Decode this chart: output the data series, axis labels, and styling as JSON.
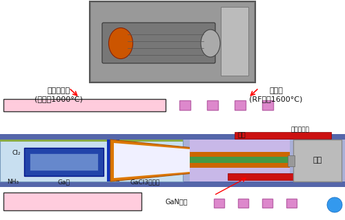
{
  "bg_color": "#ffffff",
  "label_raw_material": "原料发生部\n(电炉～1000°C)",
  "label_growth": "生长部\n(RF炉～1600°C)",
  "label_heated": "被加热物体",
  "label_base": "基座",
  "label_nozzle": "喷嘴",
  "label_cl2": "Cl₂",
  "label_nh3": "NH₃",
  "label_ga": "Ga板",
  "label_gacl3": "GaCl3发生部",
  "label_gan": "GaN晶体",
  "pink_light": "#ffccdd",
  "pink_sq": "#dd88cc",
  "pink_sq_edge": "#bb66aa",
  "tube_border": "#5566aa",
  "tube_fill": "#aab0d8",
  "light_blue": "#c8dff0",
  "dark_blue_tube": "#2244aa",
  "blue_inner": "#1133bb",
  "blue_window": "#7799cc",
  "orange": "#dd7700",
  "green_stripe": "#449944",
  "red_bar": "#cc1111",
  "gray_base": "#bbbbbb",
  "gray_base_edge": "#888888",
  "purple_nozzle": "#c8b8e8"
}
